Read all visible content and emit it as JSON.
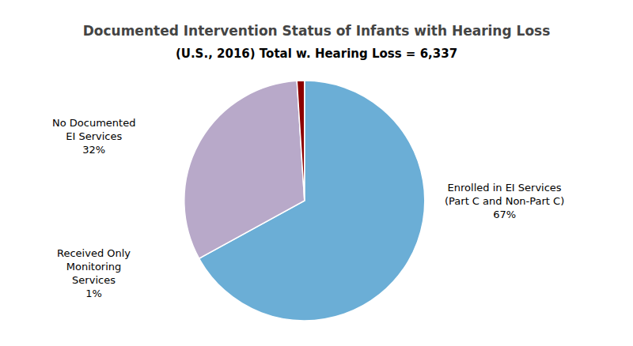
{
  "chart_data": {
    "type": "pie",
    "title": "Documented Intervention Status of Infants with Hearing Loss",
    "subtitle": "(U.S., 2016) Total w. Hearing Loss = 6,337",
    "categories": [
      "Enrolled in EI Services\n(Part C and Non-Part C)",
      "No Documented\nEI Services",
      "Received Only\nMonitoring\nServices"
    ],
    "values": [
      67,
      32,
      1
    ],
    "value_labels": [
      "67%",
      "32%",
      "1%"
    ],
    "colors": [
      "#6baed6",
      "#b8a9c9",
      "#8b0000"
    ],
    "data_labels": true
  }
}
